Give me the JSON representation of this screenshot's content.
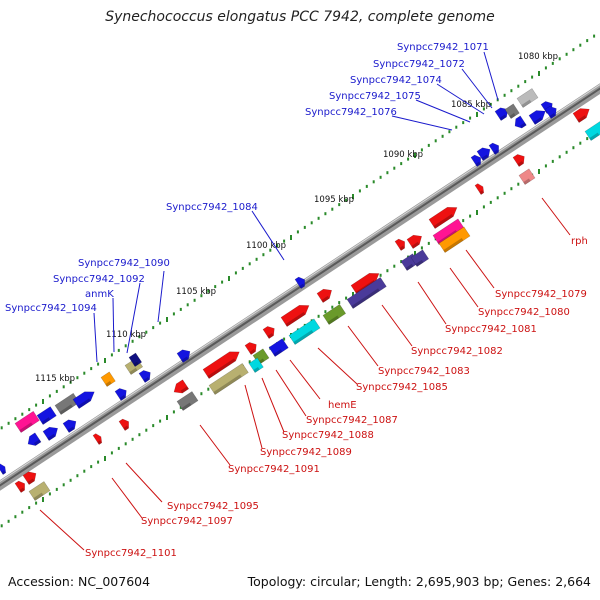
{
  "title": "Synechococcus elongatus PCC 7942, complete genome",
  "footer": {
    "accession": "Accession: NC_007604",
    "summary": "Topology: circular; Length: 2,695,903 bp; Genes: 2,664"
  },
  "ticks": [
    {
      "label": "1080 kbp"
    },
    {
      "label": "1085 kbp"
    },
    {
      "label": "1090 kbp"
    },
    {
      "label": "1095 kbp"
    },
    {
      "label": "1100 kbp"
    },
    {
      "label": "1105 kbp"
    },
    {
      "label": "1110 kbp"
    },
    {
      "label": "1115 kbp"
    }
  ],
  "gene_labels_top": [
    "Synpcc7942_1071",
    "Synpcc7942_1072",
    "Synpcc7942_1074",
    "Synpcc7942_1075",
    "Synpcc7942_1076",
    "Synpcc7942_1084",
    "Synpcc7942_1090",
    "Synpcc7942_1092",
    "anmK",
    "Synpcc7942_1094"
  ],
  "gene_labels_bottom": [
    "rph",
    "Synpcc7942_1079",
    "Synpcc7942_1080",
    "Synpcc7942_1081",
    "Synpcc7942_1082",
    "Synpcc7942_1083",
    "Synpcc7942_1085",
    "hemE",
    "Synpcc7942_1087",
    "Synpcc7942_1088",
    "Synpcc7942_1089",
    "Synpcc7942_1091",
    "Synpcc7942_1095",
    "Synpcc7942_1097",
    "Synpcc7942_1101"
  ],
  "colors": {
    "label_top": "#1a1acc",
    "label_bottom": "#cc1111",
    "backbone": "#777777",
    "tick_dot": "#2a8a2a"
  }
}
